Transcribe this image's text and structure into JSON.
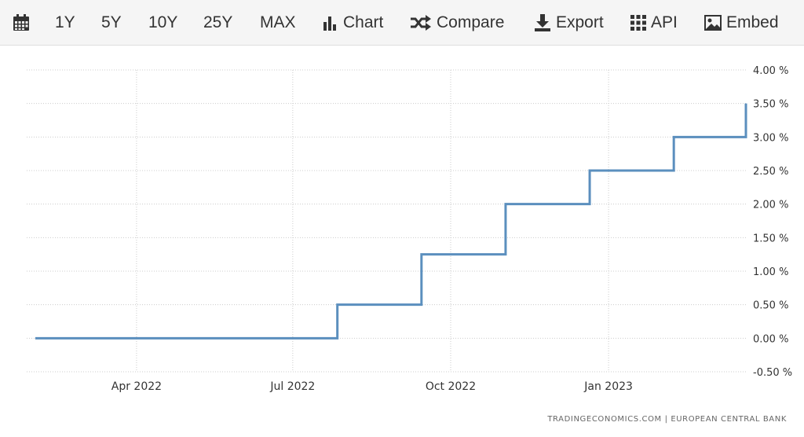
{
  "toolbar": {
    "calendar_icon": "calendar-icon",
    "range_buttons": [
      "1Y",
      "5Y",
      "10Y",
      "25Y",
      "MAX"
    ],
    "chart_label": "Chart",
    "compare_label": "Compare",
    "export_label": "Export",
    "api_label": "API",
    "embed_label": "Embed"
  },
  "source_text": "TRADINGECONOMICS.COM  |  EUROPEAN CENTRAL BANK",
  "colors": {
    "line": "#5b8fbe",
    "grid": "#cccccc",
    "toolbar_bg": "#f5f5f5"
  },
  "chart_data": {
    "type": "line",
    "step": true,
    "title": "",
    "xlabel": "",
    "ylabel": "",
    "ylim": [
      -0.5,
      4.0
    ],
    "y_ticks": [
      "4.00 %",
      "3.50 %",
      "3.00 %",
      "2.50 %",
      "2.00 %",
      "1.50 %",
      "1.00 %",
      "0.50 %",
      "0.00 %",
      "-0.50 %"
    ],
    "x_ticks": [
      "Apr 2022",
      "Jul 2022",
      "Oct 2022",
      "Jan 2023"
    ],
    "grid": true,
    "series": [
      {
        "points": [
          {
            "date": "2022-02-01",
            "value": 0.0
          },
          {
            "date": "2022-07-27",
            "value": 0.5
          },
          {
            "date": "2022-09-14",
            "value": 1.25
          },
          {
            "date": "2022-11-02",
            "value": 2.0
          },
          {
            "date": "2022-12-21",
            "value": 2.5
          },
          {
            "date": "2023-02-08",
            "value": 3.0
          },
          {
            "date": "2023-03-22",
            "value": 3.5
          }
        ]
      }
    ]
  }
}
